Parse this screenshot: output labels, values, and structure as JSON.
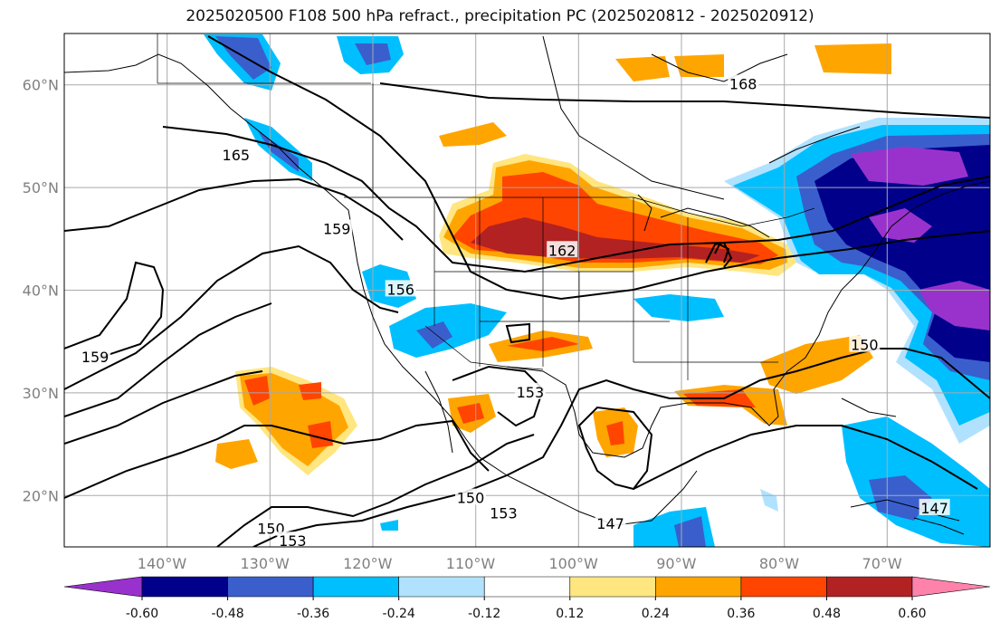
{
  "title": "2025020500 F108 500 hPa refract., precipitation PC (2025020812 - 2025020912)",
  "map": {
    "projection": "PlateCarree",
    "lon_range": [
      -149.5,
      -59.5
    ],
    "lat_range": [
      15,
      65
    ],
    "lat_ticks": [
      {
        "value": 60,
        "label": "60°N"
      },
      {
        "value": 50,
        "label": "50°N"
      },
      {
        "value": 40,
        "label": "40°N"
      },
      {
        "value": 30,
        "label": "30°N"
      },
      {
        "value": 20,
        "label": "20°N"
      }
    ],
    "lon_ticks": [
      {
        "value": -140,
        "label": "140°W"
      },
      {
        "value": -130,
        "label": "130°W"
      },
      {
        "value": -120,
        "label": "120°W"
      },
      {
        "value": -110,
        "label": "110°W"
      },
      {
        "value": -100,
        "label": "100°W"
      },
      {
        "value": -90,
        "label": "90°W"
      },
      {
        "value": -80,
        "label": "80°W"
      },
      {
        "value": -70,
        "label": "70°W"
      }
    ],
    "contour_labels": [
      {
        "text": "168",
        "lon": -83.5,
        "lat": 60.1
      },
      {
        "text": "165",
        "lon": -132.8,
        "lat": 53.2
      },
      {
        "text": "159",
        "lon": -146.5,
        "lat": 33.5
      },
      {
        "text": "159",
        "lon": -123.0,
        "lat": 46.0
      },
      {
        "text": "156",
        "lon": -116.8,
        "lat": 40.1
      },
      {
        "text": "162",
        "lon": -101.1,
        "lat": 43.9
      },
      {
        "text": "153",
        "lon": -104.2,
        "lat": 30.1
      },
      {
        "text": "150",
        "lon": -71.7,
        "lat": 34.7
      },
      {
        "text": "150",
        "lon": -110.0,
        "lat": 19.8
      },
      {
        "text": "153",
        "lon": -106.8,
        "lat": 18.3
      },
      {
        "text": "150",
        "lon": -129.4,
        "lat": 16.8
      },
      {
        "text": "153",
        "lon": -127.3,
        "lat": 15.6
      },
      {
        "text": "147",
        "lon": -96.4,
        "lat": 17.3
      },
      {
        "text": "147",
        "lon": -64.9,
        "lat": 18.8
      }
    ]
  },
  "colorbar": {
    "levels": [
      "-0.60",
      "-0.48",
      "-0.36",
      "-0.24",
      "-0.12",
      "0.12",
      "0.24",
      "0.36",
      "0.48",
      "0.60"
    ],
    "colors": [
      "#9932cc",
      "#00008b",
      "#3a5fcd",
      "#00bfff",
      "#b0e2ff",
      "#ffffff",
      "#ffe680",
      "#ffa500",
      "#ff4500",
      "#b22222",
      "#ff82ab"
    ]
  }
}
